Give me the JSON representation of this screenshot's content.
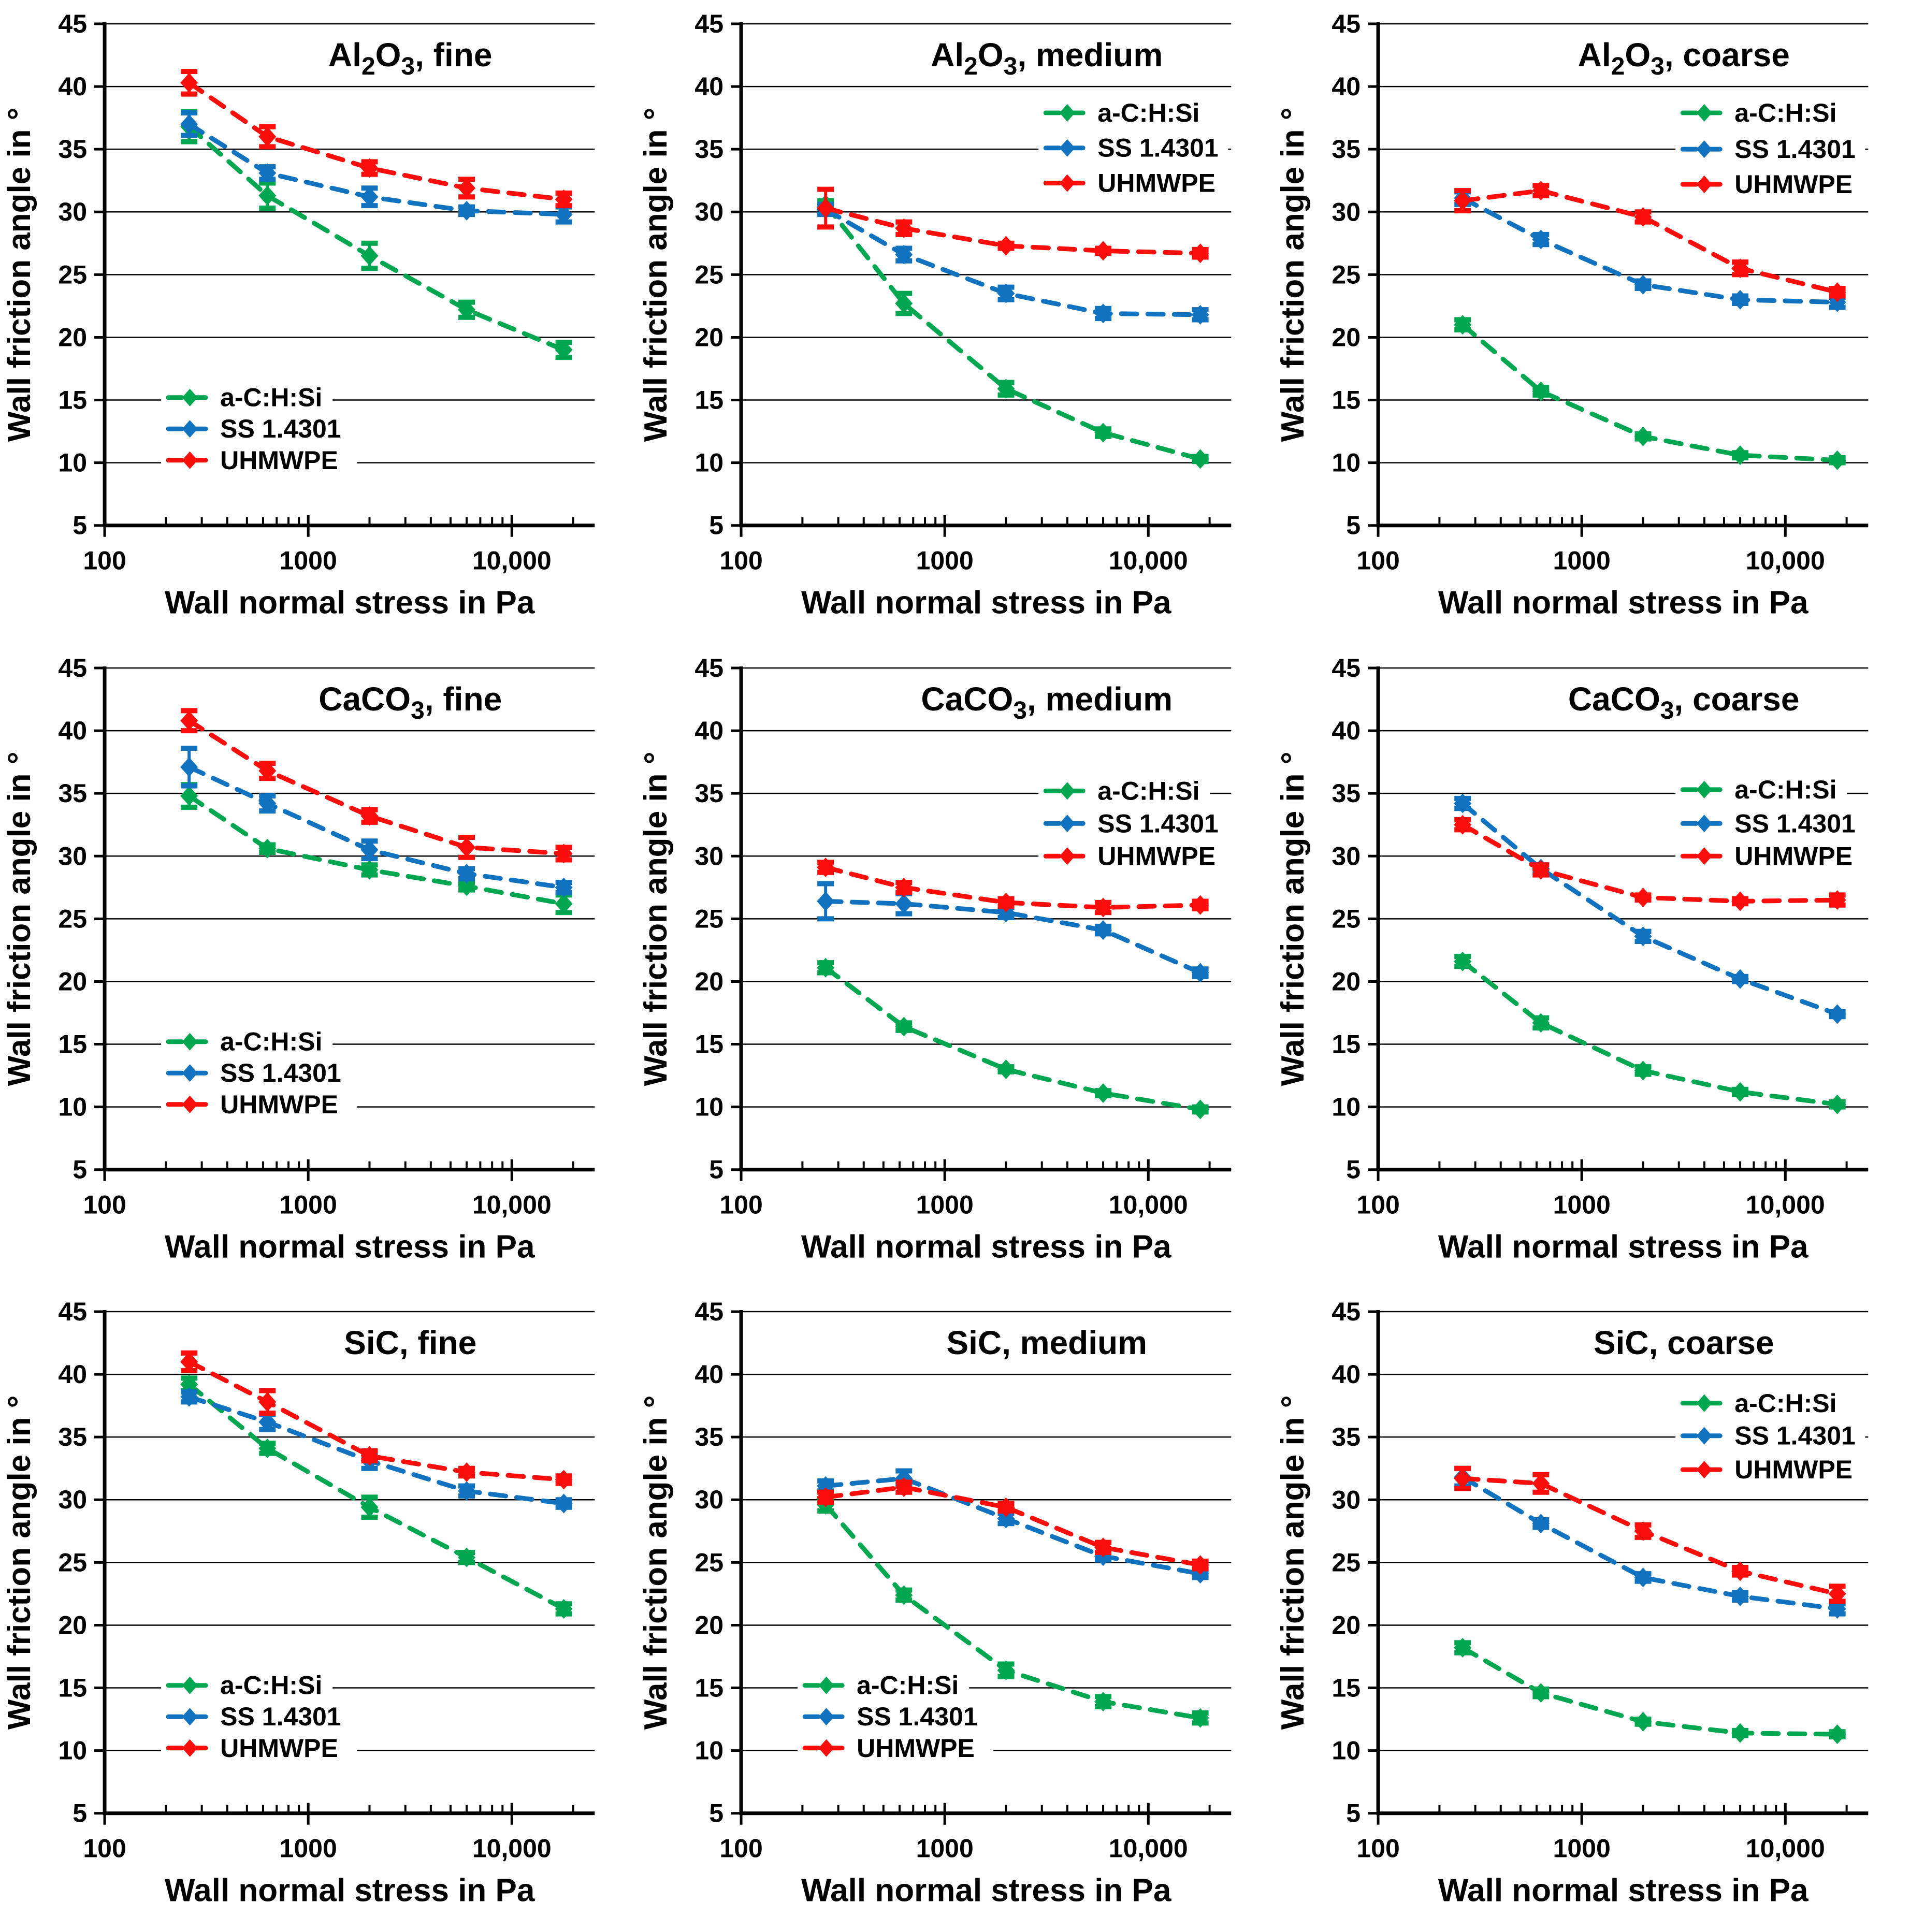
{
  "figure": {
    "background": "#ffffff",
    "description": "3x3 grid of wall friction angle vs wall normal stress charts for three powders (Al2O3, CaCO3, SiC) at three particle sizes (fine, medium, coarse), each comparing three wall materials"
  },
  "colors": {
    "series_green": "#00A750",
    "series_blue": "#1173BF",
    "series_red": "#FA0D0B",
    "axis": "#000000",
    "background": "#ffffff"
  },
  "chart_data": {
    "type": "line",
    "x_label": "Wall normal stress in Pa",
    "y_label": "Wall friction angle in °",
    "x_scale": "log",
    "xlim": [
      100,
      26000
    ],
    "ylim": [
      5,
      45
    ],
    "y_ticks": [
      5,
      10,
      15,
      20,
      25,
      30,
      35,
      40,
      45
    ],
    "x_major_ticks": [
      {
        "value": 100,
        "label": "100"
      },
      {
        "value": 1000,
        "label": "1000"
      },
      {
        "value": 10000,
        "label": "10,000"
      }
    ],
    "x_minor_ticks": [
      200,
      300,
      400,
      500,
      600,
      700,
      800,
      900,
      2000,
      3000,
      4000,
      5000,
      6000,
      7000,
      8000,
      9000,
      20000
    ],
    "grid": "horizontal",
    "legend_border": false,
    "x_values_pa": [
      260,
      630,
      2000,
      6000,
      18000
    ],
    "series_meta": [
      {
        "name": "a-C:H:Si",
        "color": "#00A750",
        "marker": "diamond",
        "line": "dashed"
      },
      {
        "name": "SS 1.4301",
        "color": "#1173BF",
        "marker": "diamond",
        "line": "dashed"
      },
      {
        "name": "UHMWPE",
        "color": "#FA0D0B",
        "marker": "diamond",
        "line": "dashed"
      }
    ],
    "charts": [
      {
        "id": "al2o3-fine",
        "title": "Al2O3, fine",
        "title_parts": [
          {
            "t": "Al"
          },
          {
            "t": "2",
            "sub": true
          },
          {
            "t": "O"
          },
          {
            "t": "3",
            "sub": true
          },
          {
            "t": ", fine"
          }
        ],
        "legend_position": "bottom-left",
        "legend_y": [
          15.2,
          12.7,
          10.2
        ],
        "series": [
          {
            "name": "a-C:H:Si",
            "values": [
              36.8,
              31.3,
              26.5,
              22.2,
              19.0
            ],
            "errors": [
              1.2,
              1.0,
              1.0,
              0.6,
              0.6
            ]
          },
          {
            "name": "SS 1.4301",
            "values": [
              37.0,
              33.1,
              31.2,
              30.1,
              29.8
            ],
            "errors": [
              0.9,
              0.5,
              0.7,
              0.3,
              0.6
            ]
          },
          {
            "name": "UHMWPE",
            "values": [
              40.3,
              36.0,
              33.5,
              31.9,
              31.0
            ],
            "errors": [
              0.9,
              0.8,
              0.5,
              0.7,
              0.5
            ]
          }
        ]
      },
      {
        "id": "al2o3-medium",
        "title": "Al2O3, medium",
        "title_parts": [
          {
            "t": "Al"
          },
          {
            "t": "2",
            "sub": true
          },
          {
            "t": "O"
          },
          {
            "t": "3",
            "sub": true
          },
          {
            "t": ", medium"
          }
        ],
        "legend_position": "top-right",
        "legend_y": [
          37.9,
          35.1,
          32.3
        ],
        "series": [
          {
            "name": "a-C:H:Si",
            "values": [
              30.6,
              22.7,
              15.9,
              12.4,
              10.3
            ],
            "errors": [
              0.3,
              0.8,
              0.5,
              0.3,
              0.2
            ]
          },
          {
            "name": "SS 1.4301",
            "values": [
              30.2,
              26.6,
              23.5,
              21.9,
              21.8
            ],
            "errors": [
              0.4,
              0.5,
              0.5,
              0.4,
              0.4
            ]
          },
          {
            "name": "UHMWPE",
            "values": [
              30.3,
              28.7,
              27.3,
              26.9,
              26.7
            ],
            "errors": [
              1.5,
              0.5,
              0.2,
              0.2,
              0.3
            ]
          }
        ]
      },
      {
        "id": "al2o3-coarse",
        "title": "Al2O3, coarse",
        "title_parts": [
          {
            "t": "Al"
          },
          {
            "t": "2",
            "sub": true
          },
          {
            "t": "O"
          },
          {
            "t": "3",
            "sub": true
          },
          {
            "t": ", coarse"
          }
        ],
        "legend_position": "top-right",
        "legend_y": [
          37.9,
          35.0,
          32.2
        ],
        "series": [
          {
            "name": "a-C:H:Si",
            "values": [
              21.0,
              15.7,
              12.1,
              10.6,
              10.2
            ],
            "errors": [
              0.4,
              0.3,
              0.2,
              0.2,
              0.2
            ]
          },
          {
            "name": "SS 1.4301",
            "values": [
              31.1,
              27.8,
              24.2,
              23.0,
              22.8
            ],
            "errors": [
              0.5,
              0.4,
              0.3,
              0.3,
              0.4
            ]
          },
          {
            "name": "UHMWPE",
            "values": [
              30.9,
              31.7,
              29.6,
              25.5,
              23.6
            ],
            "errors": [
              0.8,
              0.4,
              0.4,
              0.5,
              0.3
            ]
          }
        ]
      },
      {
        "id": "caco3-fine",
        "title": "CaCO3, fine",
        "title_parts": [
          {
            "t": "CaCO"
          },
          {
            "t": "3",
            "sub": true
          },
          {
            "t": ", fine"
          }
        ],
        "legend_position": "bottom-left",
        "legend_y": [
          15.2,
          12.7,
          10.2
        ],
        "series": [
          {
            "name": "a-C:H:Si",
            "values": [
              34.8,
              30.6,
              28.9,
              27.6,
              26.2
            ],
            "errors": [
              0.9,
              0.3,
              0.4,
              0.3,
              0.7
            ]
          },
          {
            "name": "SS 1.4301",
            "values": [
              37.1,
              34.2,
              30.5,
              28.6,
              27.5
            ],
            "errors": [
              1.5,
              0.6,
              0.7,
              0.4,
              0.4
            ]
          },
          {
            "name": "UHMWPE",
            "values": [
              40.8,
              36.8,
              33.2,
              30.7,
              30.2
            ],
            "errors": [
              0.8,
              0.6,
              0.5,
              0.8,
              0.5
            ]
          }
        ]
      },
      {
        "id": "caco3-medium",
        "title": "CaCO3, medium",
        "title_parts": [
          {
            "t": "CaCO"
          },
          {
            "t": "3",
            "sub": true
          },
          {
            "t": ", medium"
          }
        ],
        "legend_position": "top-right",
        "legend_y": [
          35.2,
          32.6,
          30.0
        ],
        "series": [
          {
            "name": "a-C:H:Si",
            "values": [
              21.1,
              16.4,
              13.0,
              11.1,
              9.8
            ],
            "errors": [
              0.4,
              0.3,
              0.2,
              0.2,
              0.2
            ]
          },
          {
            "name": "SS 1.4301",
            "values": [
              26.4,
              26.2,
              25.5,
              24.1,
              20.7
            ],
            "errors": [
              1.4,
              0.8,
              0.4,
              0.3,
              0.3
            ]
          },
          {
            "name": "UHMWPE",
            "values": [
              29.1,
              27.5,
              26.3,
              25.9,
              26.1
            ],
            "errors": [
              0.4,
              0.4,
              0.3,
              0.4,
              0.3
            ]
          }
        ]
      },
      {
        "id": "caco3-coarse",
        "title": "CaCO3, coarse",
        "title_parts": [
          {
            "t": "CaCO"
          },
          {
            "t": "3",
            "sub": true
          },
          {
            "t": ", coarse"
          }
        ],
        "legend_position": "top-right",
        "legend_y": [
          35.3,
          32.6,
          30.0
        ],
        "series": [
          {
            "name": "a-C:H:Si",
            "values": [
              21.6,
              16.7,
              12.9,
              11.2,
              10.2
            ],
            "errors": [
              0.4,
              0.4,
              0.3,
              0.2,
              0.2
            ]
          },
          {
            "name": "SS 1.4301",
            "values": [
              34.2,
              29.0,
              23.6,
              20.2,
              17.4
            ],
            "errors": [
              0.4,
              0.3,
              0.4,
              0.2,
              0.2
            ]
          },
          {
            "name": "UHMWPE",
            "values": [
              32.5,
              28.9,
              26.7,
              26.4,
              26.5
            ],
            "errors": [
              0.4,
              0.4,
              0.2,
              0.2,
              0.4
            ]
          }
        ]
      },
      {
        "id": "sic-fine",
        "title": "SiC, fine",
        "title_parts": [
          {
            "t": "SiC, fine"
          }
        ],
        "legend_position": "bottom-left",
        "legend_y": [
          15.2,
          12.7,
          10.2
        ],
        "series": [
          {
            "name": "a-C:H:Si",
            "values": [
              39.2,
              34.1,
              29.4,
              25.4,
              21.3
            ],
            "errors": [
              0.5,
              0.4,
              0.8,
              0.4,
              0.4
            ]
          },
          {
            "name": "SS 1.4301",
            "values": [
              38.2,
              36.2,
              33.1,
              30.7,
              29.7
            ],
            "errors": [
              0.4,
              0.6,
              0.6,
              0.4,
              0.3
            ]
          },
          {
            "name": "UHMWPE",
            "values": [
              41.0,
              37.8,
              33.5,
              32.2,
              31.6
            ],
            "errors": [
              0.7,
              0.9,
              0.4,
              0.3,
              0.3
            ]
          }
        ]
      },
      {
        "id": "sic-medium",
        "title": "SiC, medium",
        "title_parts": [
          {
            "t": "SiC, medium"
          }
        ],
        "legend_position": "bottom-left",
        "legend_y": [
          15.2,
          12.7,
          10.2
        ],
        "series": [
          {
            "name": "a-C:H:Si",
            "values": [
              29.6,
              22.4,
              16.4,
              13.9,
              12.6
            ],
            "errors": [
              0.5,
              0.4,
              0.5,
              0.4,
              0.4
            ]
          },
          {
            "name": "SS 1.4301",
            "values": [
              31.1,
              31.7,
              28.5,
              25.5,
              24.1
            ],
            "errors": [
              0.4,
              0.6,
              0.4,
              0.3,
              0.3
            ]
          },
          {
            "name": "UHMWPE",
            "values": [
              30.2,
              31.0,
              29.4,
              26.2,
              24.8
            ],
            "errors": [
              0.4,
              0.4,
              0.3,
              0.4,
              0.3
            ]
          }
        ]
      },
      {
        "id": "sic-coarse",
        "title": "SiC, coarse",
        "title_parts": [
          {
            "t": "SiC, coarse"
          }
        ],
        "legend_position": "top-right",
        "legend_y": [
          37.7,
          35.1,
          32.4
        ],
        "series": [
          {
            "name": "a-C:H:Si",
            "values": [
              18.2,
              14.6,
              12.3,
              11.4,
              11.3
            ],
            "errors": [
              0.4,
              0.3,
              0.2,
              0.2,
              0.2
            ]
          },
          {
            "name": "SS 1.4301",
            "values": [
              31.8,
              28.1,
              23.8,
              22.3,
              21.3
            ],
            "errors": [
              0.7,
              0.3,
              0.3,
              0.3,
              0.4
            ]
          },
          {
            "name": "UHMWPE",
            "values": [
              31.7,
              31.3,
              27.5,
              24.3,
              22.5
            ],
            "errors": [
              0.8,
              0.7,
              0.5,
              0.3,
              0.6
            ]
          }
        ]
      }
    ]
  }
}
